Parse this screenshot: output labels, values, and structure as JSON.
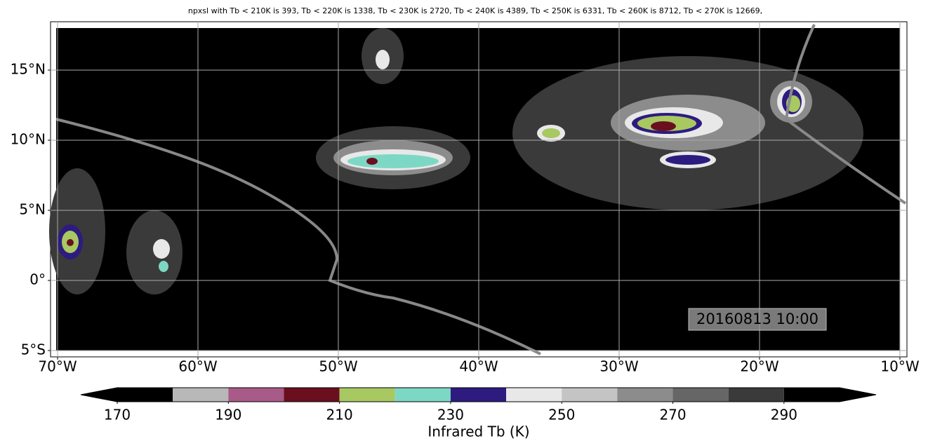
{
  "chart_data": {
    "type": "contourf",
    "title": "npxsl with Tb < 210K is 393,  Tb < 220K is 1338,  Tb < 230K is 2720,  Tb < 240K is 4389,  Tb < 250K is 6331,  Tb < 260K is 8712,  Tb < 270K is 12669,",
    "xlim": [
      -70.5,
      -9.5
    ],
    "xticks": [
      {
        "value": -70,
        "label": "70°W"
      },
      {
        "value": -60,
        "label": "60°W"
      },
      {
        "value": -50,
        "label": "50°W"
      },
      {
        "value": -40,
        "label": "40°W"
      },
      {
        "value": -30,
        "label": "30°W"
      },
      {
        "value": -20,
        "label": "20°W"
      },
      {
        "value": -10,
        "label": "10°W"
      }
    ],
    "ylim": [
      -5.45,
      18.45
    ],
    "yticks": [
      {
        "value": -5,
        "label": "5°S"
      },
      {
        "value": 0,
        "label": "0°"
      },
      {
        "value": 5,
        "label": "5°N"
      },
      {
        "value": 10,
        "label": "10°N"
      },
      {
        "value": 15,
        "label": "15°N"
      }
    ],
    "grid": true,
    "annotation": "20160813 10:00",
    "colorbar": {
      "label": "Infrared Tb (K)",
      "bounds": [
        170,
        180,
        190,
        200,
        210,
        220,
        230,
        240,
        250,
        260,
        270,
        280,
        290,
        300
      ],
      "colors": [
        "#000000",
        "#b8b8b8",
        "#a85a88",
        "#6b0f1f",
        "#a8c862",
        "#7cd8c4",
        "#2d1b80",
        "#e8e8e8",
        "#c4c4c4",
        "#8c8c8c",
        "#666666",
        "#3a3a3a",
        "#000000"
      ],
      "ticks": [
        170,
        190,
        210,
        230,
        250,
        270,
        290
      ],
      "extend": "both"
    }
  }
}
